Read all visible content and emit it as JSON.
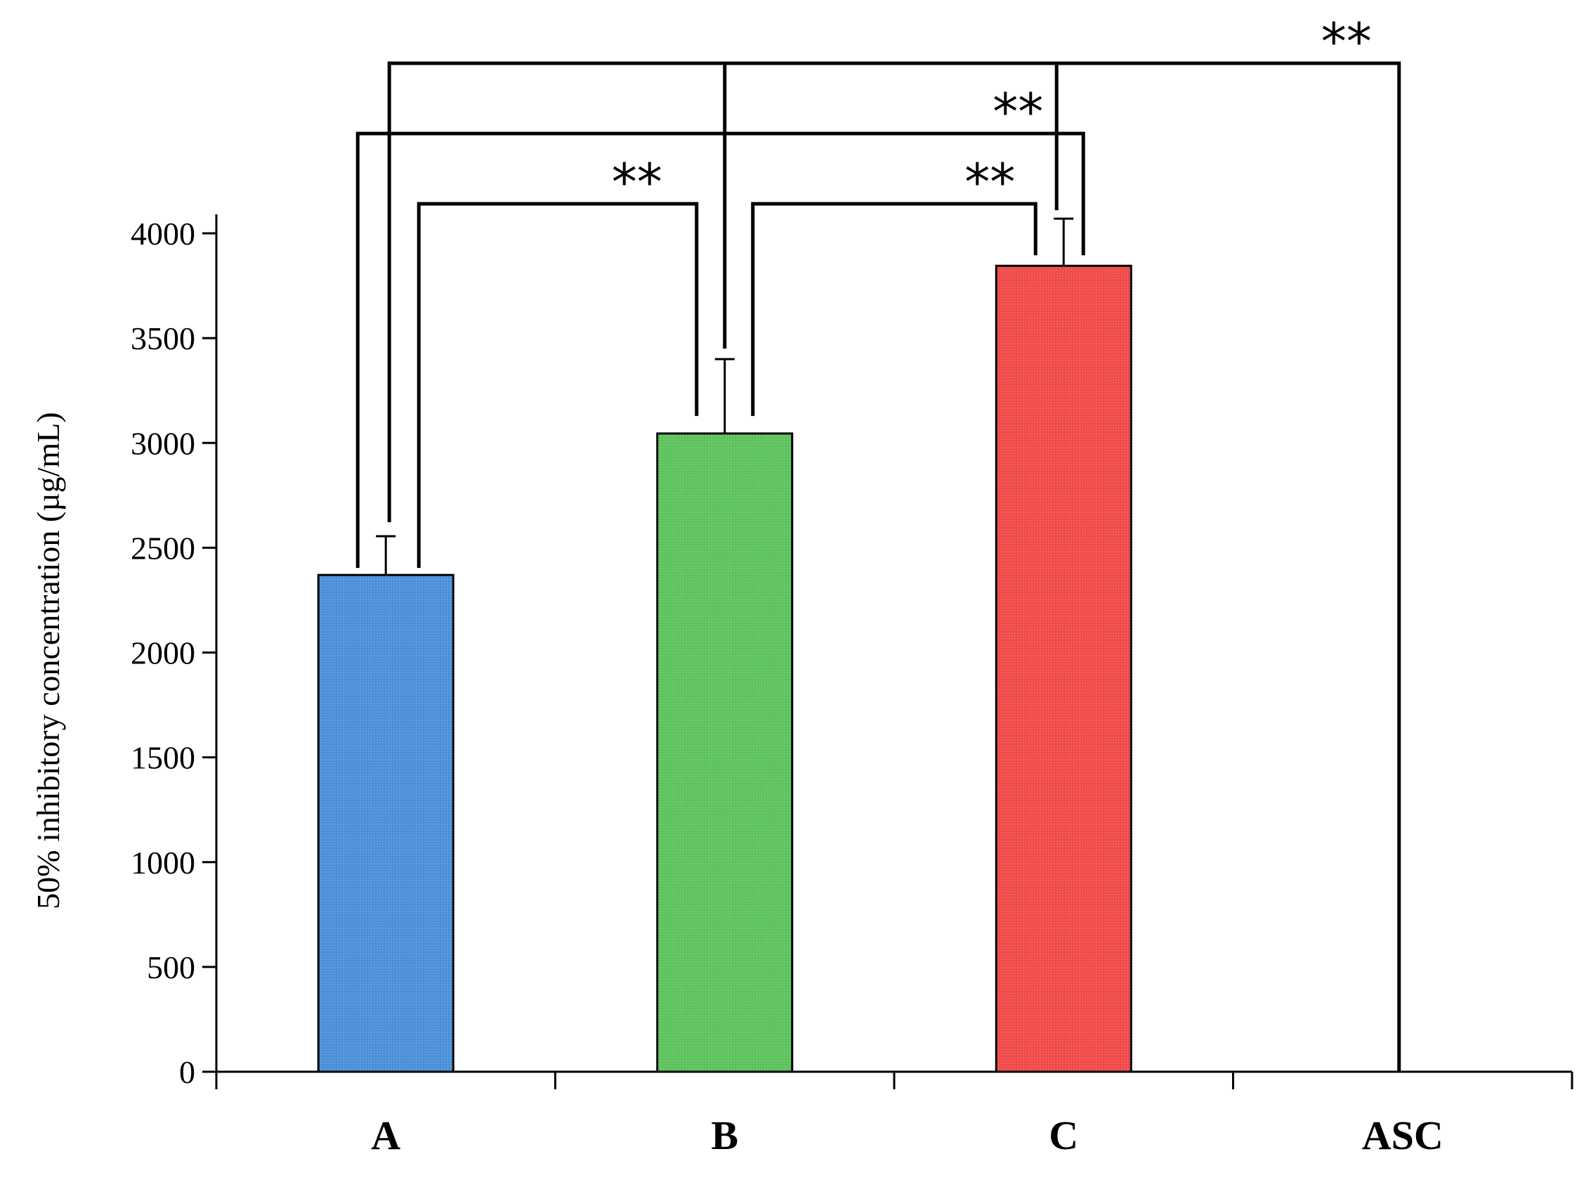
{
  "chart_data": {
    "type": "bar",
    "categories": [
      "A",
      "B",
      "C",
      "ASC"
    ],
    "values": [
      2370,
      3045,
      3845,
      0
    ],
    "errors": [
      185,
      355,
      225,
      0
    ],
    "colors": [
      "#4a8fd8",
      "#5cc25c",
      "#f04a4a",
      "#4a8fd8"
    ],
    "ylabel": "50% inhibitory concentration (µg/mL)",
    "ylim": [
      0,
      4000
    ],
    "yticks": [
      0,
      500,
      1000,
      1500,
      2000,
      2500,
      3000,
      3500,
      4000
    ],
    "grid": false,
    "legend": "none",
    "significance": [
      {
        "from": "A",
        "to": "B",
        "label": "**"
      },
      {
        "from": "B",
        "to": "C",
        "label": "**"
      },
      {
        "from": "A",
        "to": "C",
        "label": "**"
      },
      {
        "from": "A",
        "to": "ASC",
        "label": "**"
      }
    ]
  }
}
